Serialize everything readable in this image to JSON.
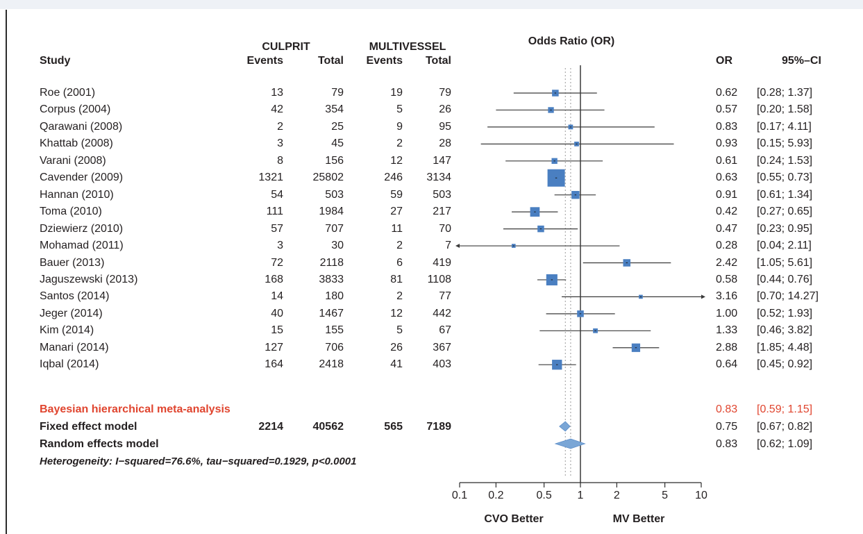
{
  "headers": {
    "study": "Study",
    "group1": "CULPRIT",
    "group2": "MULTIVESSEL",
    "events1": "Events",
    "total1": "Total",
    "events2": "Events",
    "total2": "Total",
    "plot_title": "Odds Ratio (OR)",
    "or": "OR",
    "ci": "95%–CI"
  },
  "studies": [
    {
      "name": "Roe (2001)",
      "e1": "13",
      "t1": "79",
      "e2": "19",
      "t2": "79",
      "or": "0.62",
      "ci": "[0.28; 1.37]"
    },
    {
      "name": "Corpus (2004)",
      "e1": "42",
      "t1": "354",
      "e2": "5",
      "t2": "26",
      "or": "0.57",
      "ci": "[0.20; 1.58]"
    },
    {
      "name": "Qarawani (2008)",
      "e1": "2",
      "t1": "25",
      "e2": "9",
      "t2": "95",
      "or": "0.83",
      "ci": "[0.17; 4.11]"
    },
    {
      "name": "Khattab (2008)",
      "e1": "3",
      "t1": "45",
      "e2": "2",
      "t2": "28",
      "or": "0.93",
      "ci": "[0.15; 5.93]"
    },
    {
      "name": "Varani (2008)",
      "e1": "8",
      "t1": "156",
      "e2": "12",
      "t2": "147",
      "or": "0.61",
      "ci": "[0.24; 1.53]"
    },
    {
      "name": "Cavender (2009)",
      "e1": "1321",
      "t1": "25802",
      "e2": "246",
      "t2": "3134",
      "or": "0.63",
      "ci": "[0.55; 0.73]"
    },
    {
      "name": "Hannan (2010)",
      "e1": "54",
      "t1": "503",
      "e2": "59",
      "t2": "503",
      "or": "0.91",
      "ci": "[0.61; 1.34]"
    },
    {
      "name": "Toma (2010)",
      "e1": "111",
      "t1": "1984",
      "e2": "27",
      "t2": "217",
      "or": "0.42",
      "ci": "[0.27; 0.65]"
    },
    {
      "name": "Dziewierz (2010)",
      "e1": "57",
      "t1": "707",
      "e2": "11",
      "t2": "70",
      "or": "0.47",
      "ci": "[0.23; 0.95]"
    },
    {
      "name": "Mohamad (2011)",
      "e1": "3",
      "t1": "30",
      "e2": "2",
      "t2": "7",
      "or": "0.28",
      "ci": "[0.04; 2.11]"
    },
    {
      "name": "Bauer (2013)",
      "e1": "72",
      "t1": "2118",
      "e2": "6",
      "t2": "419",
      "or": "2.42",
      "ci": "[1.05; 5.61]"
    },
    {
      "name": "Jaguszewski (2013)",
      "e1": "168",
      "t1": "3833",
      "e2": "81",
      "t2": "1108",
      "or": "0.58",
      "ci": "[0.44; 0.76]"
    },
    {
      "name": "Santos (2014)",
      "e1": "14",
      "t1": "180",
      "e2": "2",
      "t2": "77",
      "or": "3.16",
      "ci": "[0.70; 14.27]"
    },
    {
      "name": "Jeger (2014)",
      "e1": "40",
      "t1": "1467",
      "e2": "12",
      "t2": "442",
      "or": "1.00",
      "ci": "[0.52; 1.93]"
    },
    {
      "name": "Kim (2014)",
      "e1": "15",
      "t1": "155",
      "e2": "5",
      "t2": "67",
      "or": "1.33",
      "ci": "[0.46; 3.82]"
    },
    {
      "name": "Manari (2014)",
      "e1": "127",
      "t1": "706",
      "e2": "26",
      "t2": "367",
      "or": "2.88",
      "ci": "[1.85; 4.48]"
    },
    {
      "name": "Iqbal (2014)",
      "e1": "164",
      "t1": "2418",
      "e2": "41",
      "t2": "403",
      "or": "0.64",
      "ci": "[0.45; 0.92]"
    }
  ],
  "bayesian": {
    "name": "Bayesian hierarchical meta-analysis",
    "or": "0.83",
    "ci": "[0.59; 1.15]"
  },
  "fixed": {
    "name": "Fixed effect model",
    "e1": "2214",
    "t1": "40562",
    "e2": "565",
    "t2": "7189",
    "or": "0.75",
    "ci": "[0.67; 0.82]"
  },
  "random": {
    "name": "Random effects model",
    "or": "0.83",
    "ci": "[0.62; 1.09]"
  },
  "heterogeneity": "Heterogeneity: I−squared=76.6%, tau−squared=0.1929, p<0.0001",
  "axis": {
    "ticks": [
      "0.1",
      "0.2",
      "0.5",
      "1",
      "2",
      "5",
      "10"
    ],
    "left_label": "CVO Better",
    "right_label": "MV Better"
  },
  "colors": {
    "box": "#4a7fc1",
    "line": "#3a3a3a",
    "bayes": "#e0452f",
    "diamond": "#7aa6d6"
  },
  "chart_data": {
    "type": "forest",
    "scale": "log",
    "xlim": [
      0.1,
      10
    ],
    "reference_line": 1,
    "dotted_reference": [
      0.75,
      0.83
    ],
    "studies": [
      {
        "label": "Roe (2001)",
        "or": 0.62,
        "lo": 0.28,
        "hi": 1.37
      },
      {
        "label": "Corpus (2004)",
        "or": 0.57,
        "lo": 0.2,
        "hi": 1.58
      },
      {
        "label": "Qarawani (2008)",
        "or": 0.83,
        "lo": 0.17,
        "hi": 4.11
      },
      {
        "label": "Khattab (2008)",
        "or": 0.93,
        "lo": 0.15,
        "hi": 5.93
      },
      {
        "label": "Varani (2008)",
        "or": 0.61,
        "lo": 0.24,
        "hi": 1.53
      },
      {
        "label": "Cavender (2009)",
        "or": 0.63,
        "lo": 0.55,
        "hi": 0.73
      },
      {
        "label": "Hannan (2010)",
        "or": 0.91,
        "lo": 0.61,
        "hi": 1.34
      },
      {
        "label": "Toma (2010)",
        "or": 0.42,
        "lo": 0.27,
        "hi": 0.65
      },
      {
        "label": "Dziewierz (2010)",
        "or": 0.47,
        "lo": 0.23,
        "hi": 0.95
      },
      {
        "label": "Mohamad (2011)",
        "or": 0.28,
        "lo": 0.04,
        "hi": 2.11
      },
      {
        "label": "Bauer (2013)",
        "or": 2.42,
        "lo": 1.05,
        "hi": 5.61
      },
      {
        "label": "Jaguszewski (2013)",
        "or": 0.58,
        "lo": 0.44,
        "hi": 0.76
      },
      {
        "label": "Santos (2014)",
        "or": 3.16,
        "lo": 0.7,
        "hi": 14.27
      },
      {
        "label": "Jeger (2014)",
        "or": 1.0,
        "lo": 0.52,
        "hi": 1.93
      },
      {
        "label": "Kim (2014)",
        "or": 1.33,
        "lo": 0.46,
        "hi": 3.82
      },
      {
        "label": "Manari (2014)",
        "or": 2.88,
        "lo": 1.85,
        "hi": 4.48
      },
      {
        "label": "Iqbal (2014)",
        "or": 0.64,
        "lo": 0.45,
        "hi": 0.92
      }
    ],
    "summaries": [
      {
        "label": "Fixed effect model",
        "or": 0.75,
        "lo": 0.67,
        "hi": 0.82
      },
      {
        "label": "Random effects model",
        "or": 0.83,
        "lo": 0.62,
        "hi": 1.09
      }
    ],
    "weights": [
      0.3,
      0.2,
      0.1,
      0.1,
      0.2,
      3.4,
      0.5,
      0.8,
      0.3,
      0.05,
      0.4,
      1.2,
      0.05,
      0.3,
      0.1,
      0.6,
      0.9
    ]
  }
}
